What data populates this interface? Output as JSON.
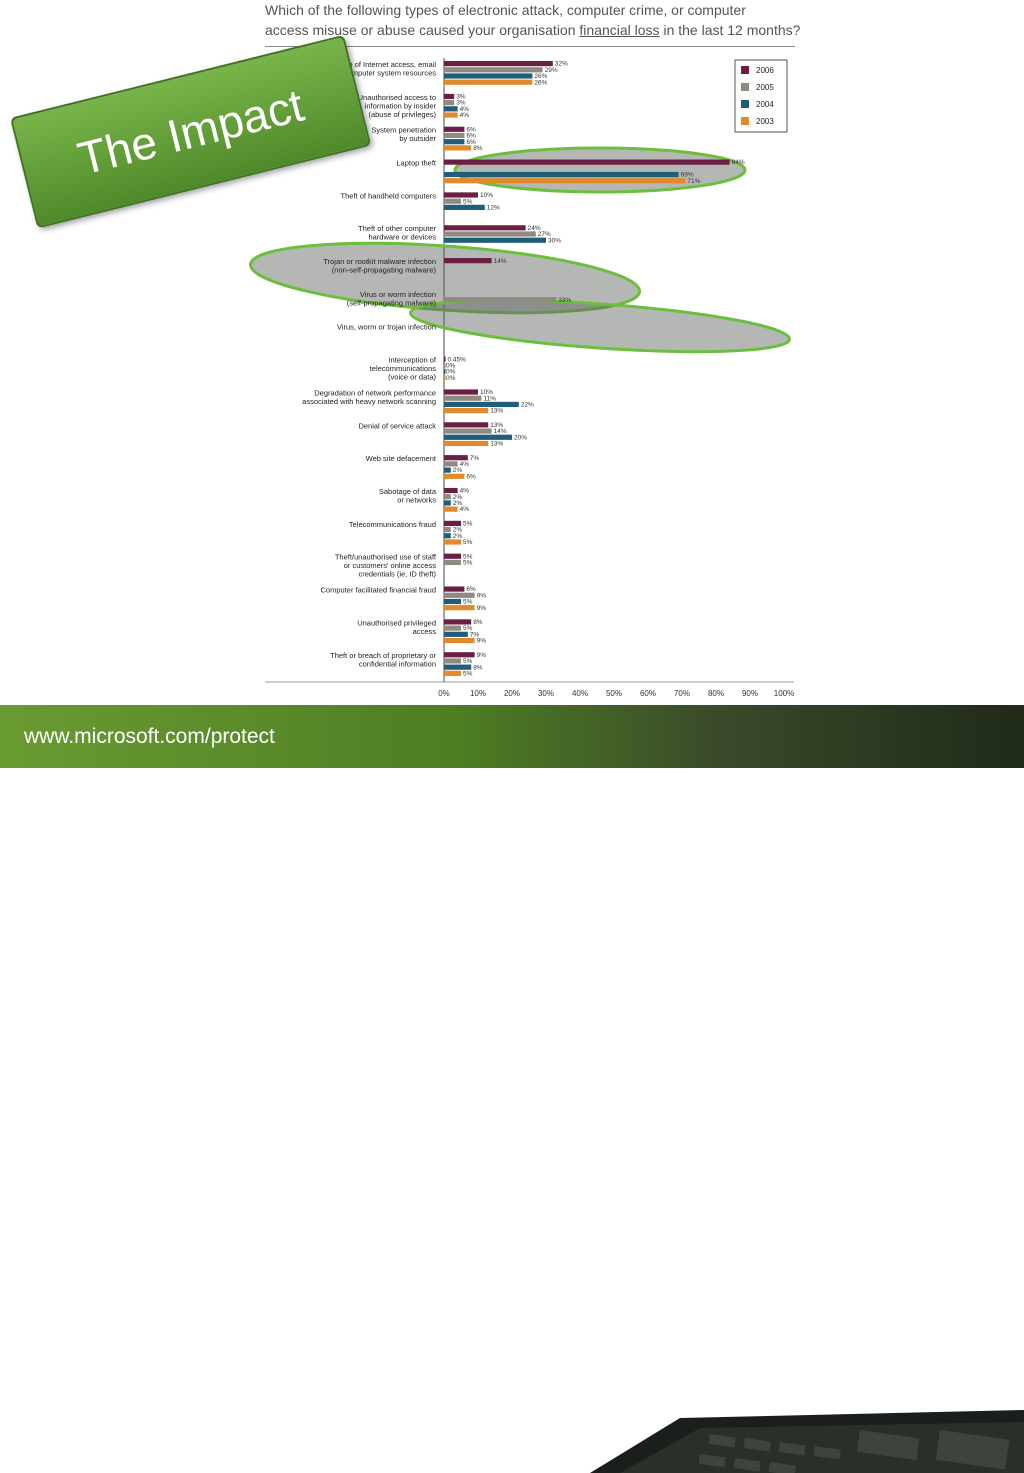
{
  "title": {
    "line1": "Which of the following types of electronic attack, computer crime, or computer",
    "line2_a": "access misuse or abuse caused your organisation ",
    "line2_b": "financial loss",
    "line2_c": " in the last 12 months?"
  },
  "banner": "The Impact",
  "footer_url": "www.microsoft.com/protect",
  "colors": {
    "2006": "#6b1f45",
    "2005": "#8f8a82",
    "2004": "#1f5d78",
    "2003": "#e08a2c",
    "highlight": "#6cbf3c",
    "banner": "#5e9a34"
  },
  "chart_data": {
    "type": "bar",
    "orientation": "horizontal",
    "legend": [
      "2006",
      "2005",
      "2004",
      "2003"
    ],
    "legend_position": "top-right",
    "xlim": [
      0,
      100
    ],
    "xticks": [
      "0%",
      "10%",
      "20%",
      "30%",
      "40%",
      "50%",
      "60%",
      "70%",
      "80%",
      "90%",
      "100%"
    ],
    "categories": [
      "Insider abuse of Internet access, email\nor computer system resources",
      "Unauthorised access to\ninformation by insider\n(abuse of privileges)",
      "System penetration\nby outsider",
      "Laptop theft",
      "Theft of handheld computers",
      "Theft of other computer\nhardware or devices",
      "Trojan or rootkit malware infection\n(non-self-propagating malware)",
      "Virus or worm infection\n(self-propagating malware)",
      "Virus, worm or trojan infection",
      "Interception of\ntelecommunications\n(voice or data)",
      "Degradation of network performance\nassociated with heavy network scanning",
      "Denial of service attack",
      "Web site defacement",
      "Sabotage of data\nor networks",
      "Telecommunications fraud",
      "Theft/unauthorised use of staff\nor customers' online access\ncredentials (ie, ID theft)",
      "Computer facilitated financial fraud",
      "Unauthorised privileged\naccess",
      "Theft or breach of proprietary or\nconfidential information"
    ],
    "series": [
      {
        "name": "2006",
        "values": [
          32,
          3,
          6,
          84,
          10,
          24,
          14,
          null,
          null,
          0.45,
          10,
          13,
          7,
          4,
          5,
          5,
          6,
          8,
          9
        ]
      },
      {
        "name": "2005",
        "values": [
          29,
          3,
          6,
          null,
          5,
          27,
          null,
          33,
          null,
          0,
          11,
          14,
          4,
          2,
          2,
          5,
          9,
          5,
          5
        ]
      },
      {
        "name": "2004",
        "values": [
          26,
          4,
          6,
          69,
          12,
          30,
          null,
          null,
          null,
          0,
          22,
          20,
          2,
          2,
          2,
          null,
          5,
          7,
          8
        ]
      },
      {
        "name": "2003",
        "values": [
          26,
          4,
          8,
          71,
          null,
          null,
          null,
          null,
          null,
          0,
          13,
          13,
          6,
          4,
          5,
          null,
          9,
          9,
          5
        ]
      }
    ],
    "labels": [
      [
        "32%",
        "29%",
        "26%",
        "26%"
      ],
      [
        "3%",
        "3%",
        "4%",
        "4%"
      ],
      [
        "6%",
        "6%",
        "6%",
        "8%"
      ],
      [
        "84%",
        "",
        "69%",
        "71%"
      ],
      [
        "10%",
        "5%",
        "12%",
        ""
      ],
      [
        "24%",
        "27%",
        "30%",
        ""
      ],
      [
        "14%",
        "",
        "",
        ""
      ],
      [
        "",
        "33%",
        "",
        ""
      ],
      [
        "",
        "",
        "",
        ""
      ],
      [
        "0.45%",
        "0%",
        "0%",
        "0%"
      ],
      [
        "10%",
        "11%",
        "22%",
        "13%"
      ],
      [
        "13%",
        "14%",
        "20%",
        "13%"
      ],
      [
        "7%",
        "4%",
        "2%",
        "6%"
      ],
      [
        "4%",
        "2%",
        "2%",
        "4%"
      ],
      [
        "5%",
        "2%",
        "2%",
        "5%"
      ],
      [
        "5%",
        "5%",
        "",
        ""
      ],
      [
        "6%",
        "9%",
        "5%",
        "9%"
      ],
      [
        "8%",
        "5%",
        "7%",
        "9%"
      ],
      [
        "9%",
        "5%",
        "8%",
        "5%"
      ]
    ]
  }
}
